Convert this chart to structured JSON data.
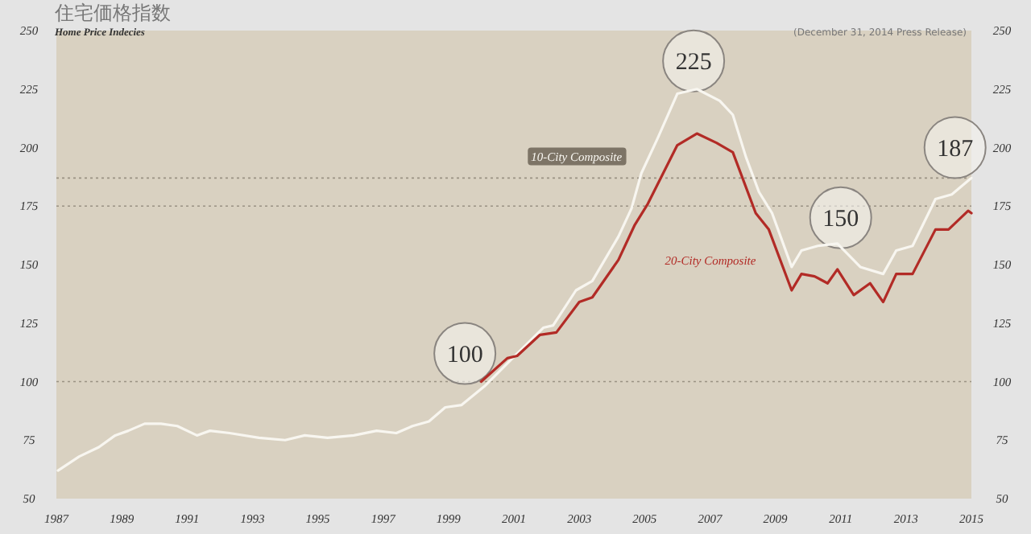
{
  "chart_data": {
    "type": "line",
    "title": "住宅価格指数",
    "subtitle": "Home Price Indecies",
    "xlim": [
      1987,
      2015
    ],
    "xticks": [
      1987,
      1989,
      1991,
      1993,
      1995,
      1997,
      1999,
      2001,
      2003,
      2005,
      2007,
      2009,
      2011,
      2013,
      2015
    ],
    "ylim": [
      50,
      250
    ],
    "yticks": [
      50,
      75,
      100,
      125,
      150,
      175,
      200,
      225,
      250
    ],
    "y2lim": [
      50,
      250
    ],
    "y2ticks": [
      50,
      75,
      100,
      125,
      150,
      175,
      200,
      225,
      250
    ],
    "ref_lines": [
      {
        "axis": "y",
        "value": 100,
        "color": "#9a9284",
        "line_style": "dotted"
      },
      {
        "axis": "y",
        "value": 175,
        "color": "#9a9284",
        "line_style": "dotted"
      },
      {
        "axis": "y",
        "value": 187,
        "color": "#9a9284",
        "line_style": "dotted"
      }
    ],
    "series": [
      {
        "name": "10-City Composite",
        "color": "#f8f6f0",
        "x": [
          1987.05,
          1987.7,
          1988.3,
          1988.8,
          1989.2,
          1989.7,
          1990.2,
          1990.7,
          1991.3,
          1991.7,
          1992.3,
          1993.2,
          1994.0,
          1994.6,
          1995.3,
          1996.1,
          1996.8,
          1997.4,
          1997.9,
          1998.4,
          1998.9,
          1999.4,
          2000.1,
          2001.1,
          2001.9,
          2002.2,
          2002.9,
          2003.4,
          2004.2,
          2004.6,
          2004.9,
          2005.4,
          2006.0,
          2006.6,
          2007.3,
          2007.7,
          2008.1,
          2008.5,
          2008.9,
          2009.5,
          2009.8,
          2010.3,
          2010.9,
          2011.6,
          2012.3,
          2012.7,
          2013.2,
          2013.9,
          2014.4,
          2015.0
        ],
        "values": [
          62,
          68,
          72,
          77,
          79,
          82,
          82,
          81,
          77,
          79,
          78,
          76,
          75,
          77,
          76,
          77,
          79,
          78,
          81,
          83,
          89,
          90,
          98,
          112,
          123,
          124,
          139,
          143,
          162,
          174,
          189,
          204,
          223,
          225,
          220,
          214,
          196,
          181,
          172,
          149,
          156,
          158,
          159,
          149,
          146,
          156,
          158,
          178,
          180,
          187
        ]
      },
      {
        "name": "20-City Composite",
        "color": "#b22b26",
        "x": [
          2000.0,
          2000.8,
          2001.1,
          2001.8,
          2002.3,
          2003.0,
          2003.4,
          2004.2,
          2004.7,
          2005.1,
          2006.0,
          2006.6,
          2007.2,
          2007.7,
          2008.4,
          2008.8,
          2009.5,
          2009.8,
          2010.2,
          2010.6,
          2010.9,
          2011.4,
          2011.9,
          2012.3,
          2012.7,
          2013.2,
          2013.9,
          2014.3,
          2014.9,
          2015.0
        ],
        "values": [
          100,
          110,
          111,
          120,
          121,
          134,
          136,
          152,
          167,
          176,
          201,
          206,
          202,
          198,
          172,
          165,
          139,
          146,
          145,
          142,
          148,
          137,
          142,
          134,
          146,
          146,
          165,
          165,
          173,
          172
        ]
      }
    ],
    "annotations": [
      "(December 31, 2014 Press Release)",
      {
        "text": "100",
        "x": 1999.5,
        "y": 112
      },
      {
        "text": "225",
        "x": 2006.5,
        "y": 237
      },
      {
        "text": "150",
        "x": 2011,
        "y": 170
      },
      {
        "text": "187",
        "x": 2014.5,
        "y": 200
      }
    ]
  }
}
